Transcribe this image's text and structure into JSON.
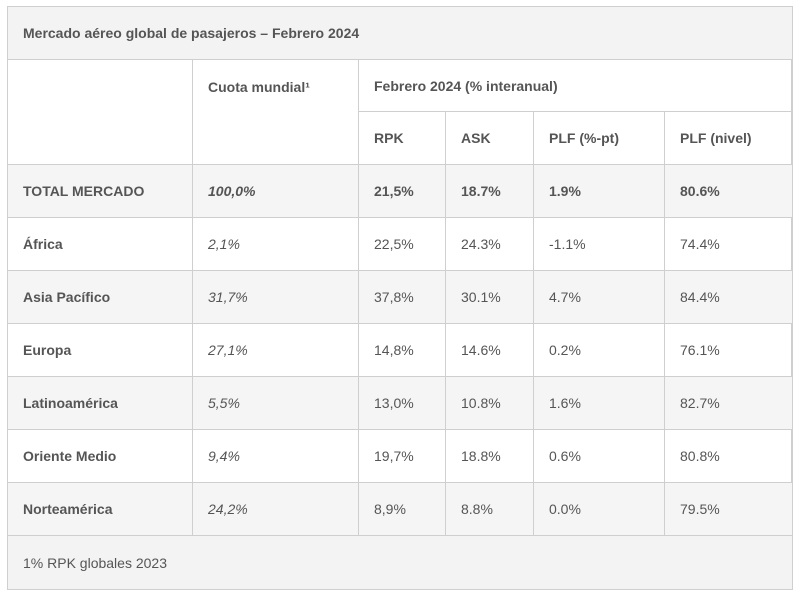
{
  "title": "Mercado aéreo global de pasajeros – Febrero 2024",
  "headers": {
    "share": "Cuota mundial¹",
    "period": "Febrero 2024 (% interanual)",
    "rpk": "RPK",
    "ask": "ASK",
    "plf_pt": "PLF (%-pt)",
    "plf_level": "PLF (nivel)"
  },
  "rows": [
    {
      "region": "TOTAL MERCADO",
      "share": "100,0%",
      "rpk": "21,5%",
      "ask": "18.7%",
      "plf_pt": "1.9%",
      "plf_level": "80.6%"
    },
    {
      "region": "África",
      "share": "2,1%",
      "rpk": "22,5%",
      "ask": "24.3%",
      "plf_pt": "-1.1%",
      "plf_level": "74.4%"
    },
    {
      "region": "Asia Pacífico",
      "share": "31,7%",
      "rpk": "37,8%",
      "ask": "30.1%",
      "plf_pt": "4.7%",
      "plf_level": "84.4%"
    },
    {
      "region": "Europa",
      "share": "27,1%",
      "rpk": "14,8%",
      "ask": "14.6%",
      "plf_pt": "0.2%",
      "plf_level": "76.1%"
    },
    {
      "region": "Latinoamérica",
      "share": "5,5%",
      "rpk": "13,0%",
      "ask": "10.8%",
      "plf_pt": "1.6%",
      "plf_level": "82.7%"
    },
    {
      "region": "Oriente Medio",
      "share": "9,4%",
      "rpk": "19,7%",
      "ask": "18.8%",
      "plf_pt": "0.6%",
      "plf_level": "80.8%"
    },
    {
      "region": "Norteamérica",
      "share": "24,2%",
      "rpk": "8,9%",
      "ask": "8.8%",
      "plf_pt": "0.0%",
      "plf_level": "79.5%"
    }
  ],
  "footnote": "1% RPK globales 2023"
}
